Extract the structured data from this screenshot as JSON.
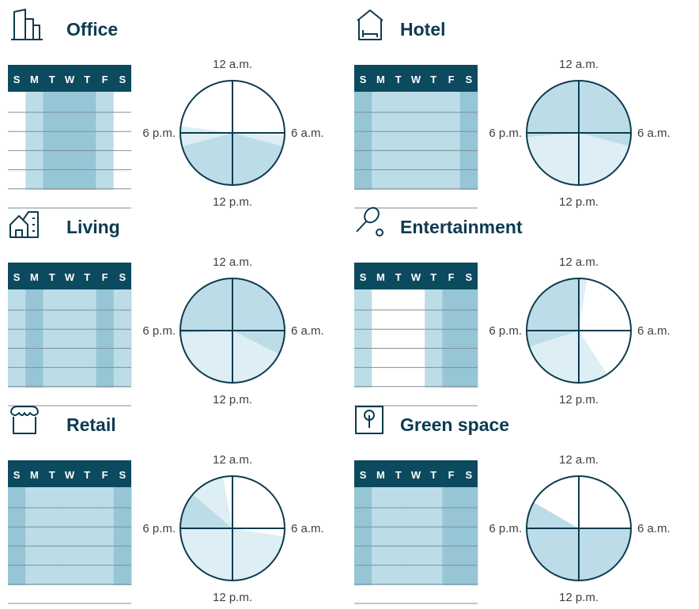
{
  "clock_labels": {
    "top": "12 a.m.",
    "right": "6 a.m.",
    "bottom": "12 p.m.",
    "left": "6 p.m."
  },
  "days": [
    "S",
    "M",
    "T",
    "W",
    "T",
    "F",
    "S"
  ],
  "colors": {
    "header": "#0b4a5f",
    "dark": "#96c6d6",
    "mid": "#bcdde8",
    "light": "#ddeef4",
    "none": "#ffffff",
    "stroke": "#0d3b4f"
  },
  "panels": [
    {
      "id": "office",
      "title": "Office",
      "icon": "office-building-icon",
      "week_levels": [
        "none",
        "mid",
        "dark",
        "dark",
        "dark",
        "mid",
        "none"
      ],
      "pie_segments": [
        {
          "from": 0,
          "to": 6.2,
          "level": "none"
        },
        {
          "from": 6.2,
          "to": 7,
          "level": "light"
        },
        {
          "from": 7,
          "to": 17,
          "level": "mid"
        },
        {
          "from": 17,
          "to": 18.5,
          "level": "light"
        },
        {
          "from": 18.5,
          "to": 24,
          "level": "none"
        }
      ]
    },
    {
      "id": "hotel",
      "title": "Hotel",
      "icon": "hotel-bed-icon",
      "week_levels": [
        "dark",
        "mid",
        "mid",
        "mid",
        "mid",
        "mid",
        "dark"
      ],
      "pie_segments": [
        {
          "from": 0,
          "to": 7,
          "level": "mid"
        },
        {
          "from": 7,
          "to": 17.7,
          "level": "light"
        },
        {
          "from": 17.7,
          "to": 24,
          "level": "mid"
        }
      ]
    },
    {
      "id": "living",
      "title": "Living",
      "icon": "house-icon",
      "week_levels": [
        "mid",
        "dark",
        "mid",
        "mid",
        "mid",
        "dark",
        "mid"
      ],
      "pie_segments": [
        {
          "from": 0,
          "to": 7.8,
          "level": "mid"
        },
        {
          "from": 7.8,
          "to": 17.8,
          "level": "light"
        },
        {
          "from": 17.8,
          "to": 24,
          "level": "mid"
        }
      ]
    },
    {
      "id": "entertainment",
      "title": "Entertainment",
      "icon": "tennis-racket-icon",
      "week_levels": [
        "mid",
        "none",
        "none",
        "none",
        "mid",
        "dark",
        "dark"
      ],
      "pie_segments": [
        {
          "from": 0,
          "to": 0.6,
          "level": "light"
        },
        {
          "from": 0.6,
          "to": 9.8,
          "level": "none"
        },
        {
          "from": 9.8,
          "to": 16.8,
          "level": "light"
        },
        {
          "from": 16.8,
          "to": 24,
          "level": "mid"
        }
      ]
    },
    {
      "id": "retail",
      "title": "Retail",
      "icon": "storefront-icon",
      "week_levels": [
        "dark",
        "mid",
        "mid",
        "mid",
        "mid",
        "mid",
        "dark"
      ],
      "pie_segments": [
        {
          "from": 0,
          "to": 6.6,
          "level": "none"
        },
        {
          "from": 6.6,
          "to": 18,
          "level": "light"
        },
        {
          "from": 18,
          "to": 20.7,
          "level": "mid"
        },
        {
          "from": 20.7,
          "to": 23.3,
          "level": "light"
        },
        {
          "from": 23.3,
          "to": 24,
          "level": "none"
        }
      ]
    },
    {
      "id": "green-space",
      "title": "Green space",
      "icon": "tree-icon",
      "week_levels": [
        "dark",
        "mid",
        "mid",
        "mid",
        "mid",
        "dark",
        "dark"
      ],
      "pie_segments": [
        {
          "from": 0,
          "to": 6,
          "level": "none"
        },
        {
          "from": 6,
          "to": 20,
          "level": "mid"
        },
        {
          "from": 20,
          "to": 24,
          "level": "none"
        }
      ]
    }
  ]
}
